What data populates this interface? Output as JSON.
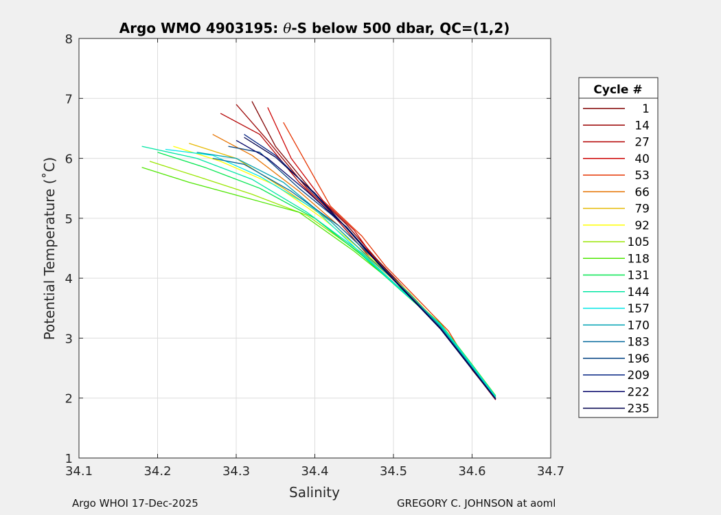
{
  "chart_data": {
    "type": "line",
    "title_prefix": "Argo WMO 4903195: ",
    "title_symbol": "θ",
    "title_suffix": "-S below 500 dbar,  QC=(1,2)",
    "xlabel": "Salinity",
    "ylabel": "Potential Temperature (˚C)",
    "xlim": [
      34.1,
      34.7
    ],
    "ylim": [
      1,
      8
    ],
    "xticks": [
      "34.1",
      "34.2",
      "34.3",
      "34.4",
      "34.5",
      "34.6",
      "34.7"
    ],
    "yticks": [
      "1",
      "2",
      "3",
      "4",
      "5",
      "6",
      "7",
      "8"
    ],
    "grid": true,
    "legend_title": "Cycle #",
    "legend_position": "right-outside",
    "series": [
      {
        "name": "1",
        "color": "#800000",
        "x": [
          34.32,
          34.35,
          34.4,
          34.44,
          34.48,
          34.52,
          34.56,
          34.6,
          34.63
        ],
        "y": [
          6.95,
          6.2,
          5.4,
          4.9,
          4.3,
          3.75,
          3.2,
          2.55,
          2.0
        ]
      },
      {
        "name": "14",
        "color": "#990000",
        "x": [
          34.3,
          34.34,
          34.39,
          34.44,
          34.48,
          34.52,
          34.56,
          34.6,
          34.63
        ],
        "y": [
          6.9,
          6.3,
          5.5,
          4.85,
          4.28,
          3.73,
          3.18,
          2.52,
          1.99
        ]
      },
      {
        "name": "27",
        "color": "#b30000",
        "x": [
          34.28,
          34.33,
          34.38,
          34.43,
          34.47,
          34.52,
          34.56,
          34.6,
          34.63
        ],
        "y": [
          6.75,
          6.4,
          5.6,
          4.95,
          4.35,
          3.72,
          3.16,
          2.5,
          1.98
        ]
      },
      {
        "name": "40",
        "color": "#cc0000",
        "x": [
          34.34,
          34.37,
          34.41,
          34.45,
          34.48,
          34.52,
          34.56,
          34.6,
          34.63
        ],
        "y": [
          6.85,
          6.0,
          5.3,
          4.8,
          4.25,
          3.7,
          3.15,
          2.48,
          1.97
        ]
      },
      {
        "name": "53",
        "color": "#e63300",
        "x": [
          34.36,
          34.39,
          34.42,
          34.46,
          34.49,
          34.53,
          34.57,
          34.6,
          34.63
        ],
        "y": [
          6.6,
          5.9,
          5.2,
          4.7,
          4.2,
          3.66,
          3.12,
          2.47,
          1.99
        ]
      },
      {
        "name": "66",
        "color": "#e67300",
        "x": [
          34.27,
          34.32,
          34.38,
          34.43,
          34.48,
          34.52,
          34.56,
          34.6,
          34.63
        ],
        "y": [
          6.4,
          6.05,
          5.45,
          4.88,
          4.26,
          3.71,
          3.17,
          2.49,
          2.0
        ]
      },
      {
        "name": "79",
        "color": "#e6b800",
        "x": [
          34.24,
          34.3,
          34.36,
          34.42,
          34.47,
          34.52,
          34.56,
          34.6,
          34.63
        ],
        "y": [
          6.25,
          6.0,
          5.5,
          4.95,
          4.32,
          3.74,
          3.19,
          2.51,
          2.01
        ]
      },
      {
        "name": "92",
        "color": "#ffff00",
        "x": [
          34.22,
          34.28,
          34.35,
          34.41,
          34.47,
          34.52,
          34.56,
          34.6,
          34.63
        ],
        "y": [
          6.2,
          5.95,
          5.55,
          5.0,
          4.35,
          3.76,
          3.2,
          2.52,
          2.02
        ]
      },
      {
        "name": "105",
        "color": "#99e600",
        "x": [
          34.19,
          34.25,
          34.32,
          34.39,
          34.46,
          34.51,
          34.56,
          34.6,
          34.63
        ],
        "y": [
          5.95,
          5.7,
          5.4,
          5.05,
          4.4,
          3.8,
          3.22,
          2.54,
          2.03
        ]
      },
      {
        "name": "118",
        "color": "#4de600",
        "x": [
          34.18,
          34.24,
          34.31,
          34.38,
          34.45,
          34.51,
          34.56,
          34.6,
          34.63
        ],
        "y": [
          5.85,
          5.6,
          5.35,
          5.1,
          4.45,
          3.82,
          3.24,
          2.56,
          2.04
        ]
      },
      {
        "name": "131",
        "color": "#00e64d",
        "x": [
          34.2,
          34.26,
          34.33,
          34.4,
          34.46,
          34.51,
          34.56,
          34.6,
          34.63
        ],
        "y": [
          6.1,
          5.85,
          5.5,
          5.0,
          4.38,
          3.79,
          3.21,
          2.53,
          2.02
        ]
      },
      {
        "name": "144",
        "color": "#00e6a3",
        "x": [
          34.18,
          34.25,
          34.32,
          34.39,
          34.46,
          34.51,
          34.56,
          34.6,
          34.63
        ],
        "y": [
          6.2,
          6.0,
          5.65,
          5.1,
          4.42,
          3.81,
          3.23,
          2.55,
          2.03
        ]
      },
      {
        "name": "157",
        "color": "#00e6e6",
        "x": [
          34.21,
          34.27,
          34.33,
          34.4,
          34.46,
          34.51,
          34.56,
          34.6,
          34.63
        ],
        "y": [
          6.15,
          6.05,
          5.7,
          5.15,
          4.4,
          3.8,
          3.22,
          2.54,
          2.02
        ]
      },
      {
        "name": "170",
        "color": "#00a3b3",
        "x": [
          34.25,
          34.3,
          34.36,
          34.42,
          34.47,
          34.52,
          34.56,
          34.6,
          34.63
        ],
        "y": [
          6.1,
          6.0,
          5.6,
          4.95,
          4.33,
          3.75,
          3.19,
          2.51,
          2.0
        ]
      },
      {
        "name": "183",
        "color": "#006699",
        "x": [
          34.27,
          34.31,
          34.37,
          34.43,
          34.48,
          34.52,
          34.56,
          34.6,
          34.63
        ],
        "y": [
          6.0,
          5.9,
          5.45,
          4.88,
          4.27,
          3.72,
          3.17,
          2.5,
          1.99
        ]
      },
      {
        "name": "196",
        "color": "#004080",
        "x": [
          34.29,
          34.33,
          34.38,
          34.44,
          34.48,
          34.52,
          34.56,
          34.6,
          34.63
        ],
        "y": [
          6.2,
          6.1,
          5.5,
          4.86,
          4.26,
          3.71,
          3.16,
          2.49,
          1.99
        ]
      },
      {
        "name": "209",
        "color": "#002080",
        "x": [
          34.31,
          34.35,
          34.4,
          34.44,
          34.48,
          34.52,
          34.56,
          34.6,
          34.63
        ],
        "y": [
          6.4,
          6.05,
          5.4,
          4.84,
          4.25,
          3.7,
          3.15,
          2.48,
          1.98
        ]
      },
      {
        "name": "222",
        "color": "#000066",
        "x": [
          34.3,
          34.34,
          34.39,
          34.44,
          34.48,
          34.52,
          34.56,
          34.6,
          34.63
        ],
        "y": [
          6.3,
          6.0,
          5.45,
          4.85,
          4.26,
          3.71,
          3.16,
          2.49,
          1.98
        ]
      },
      {
        "name": "235",
        "color": "#00004d",
        "x": [
          34.31,
          34.35,
          34.4,
          34.44,
          34.48,
          34.52,
          34.56,
          34.6,
          34.63
        ],
        "y": [
          6.35,
          6.02,
          5.42,
          4.84,
          4.25,
          3.7,
          3.15,
          2.48,
          1.98
        ]
      }
    ]
  },
  "footer": {
    "left": "Argo WHOI 17-Dec-2025",
    "right": "GREGORY C. JOHNSON at aoml"
  }
}
